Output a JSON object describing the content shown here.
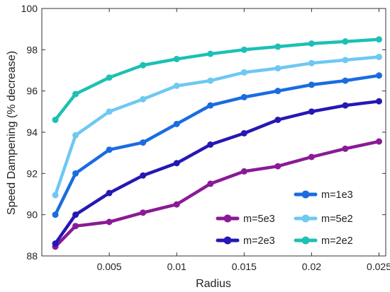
{
  "chart_data": {
    "type": "line",
    "title": "",
    "xlabel": "Radius",
    "ylabel": "Speed Dampening (% decrease)",
    "xlim": [
      0,
      0.0255
    ],
    "ylim": [
      88,
      100
    ],
    "xticks": [
      0.005,
      0.01,
      0.015,
      0.02,
      0.025
    ],
    "xtick_labels": [
      "0.005",
      "0.01",
      "0.015",
      "0.02",
      "0.025"
    ],
    "yticks": [
      88,
      90,
      92,
      94,
      96,
      98,
      100
    ],
    "ytick_labels": [
      "88",
      "90",
      "92",
      "94",
      "96",
      "98",
      "100"
    ],
    "grid": false,
    "legend_position": "bottom-right",
    "x": [
      0.001,
      0.0025,
      0.005,
      0.0075,
      0.01,
      0.0125,
      0.015,
      0.0175,
      0.02,
      0.0225,
      0.025
    ],
    "series": [
      {
        "name": "m=5e3",
        "color": "#8a1a96",
        "values": [
          88.45,
          89.45,
          89.65,
          90.1,
          90.5,
          91.5,
          92.1,
          92.35,
          92.8,
          93.2,
          93.55
        ]
      },
      {
        "name": "m=2e3",
        "color": "#2518b4",
        "values": [
          88.6,
          90.0,
          91.05,
          91.9,
          92.5,
          93.4,
          93.95,
          94.6,
          95.0,
          95.3,
          95.5
        ]
      },
      {
        "name": "m=1e3",
        "color": "#1a6ce0",
        "values": [
          90.0,
          92.0,
          93.15,
          93.5,
          94.4,
          95.3,
          95.7,
          96.0,
          96.3,
          96.5,
          96.75
        ]
      },
      {
        "name": "m=5e2",
        "color": "#6ec8f2",
        "values": [
          90.95,
          93.85,
          95.0,
          95.6,
          96.25,
          96.5,
          96.9,
          97.1,
          97.35,
          97.5,
          97.65
        ]
      },
      {
        "name": "m=2e2",
        "color": "#1cc0b4",
        "values": [
          94.6,
          95.85,
          96.65,
          97.25,
          97.55,
          97.8,
          98.0,
          98.15,
          98.3,
          98.4,
          98.5
        ]
      }
    ],
    "legend_order": [
      "m=1e3",
      "m=5e3",
      "m=5e2",
      "m=2e3",
      "m=2e2"
    ]
  }
}
